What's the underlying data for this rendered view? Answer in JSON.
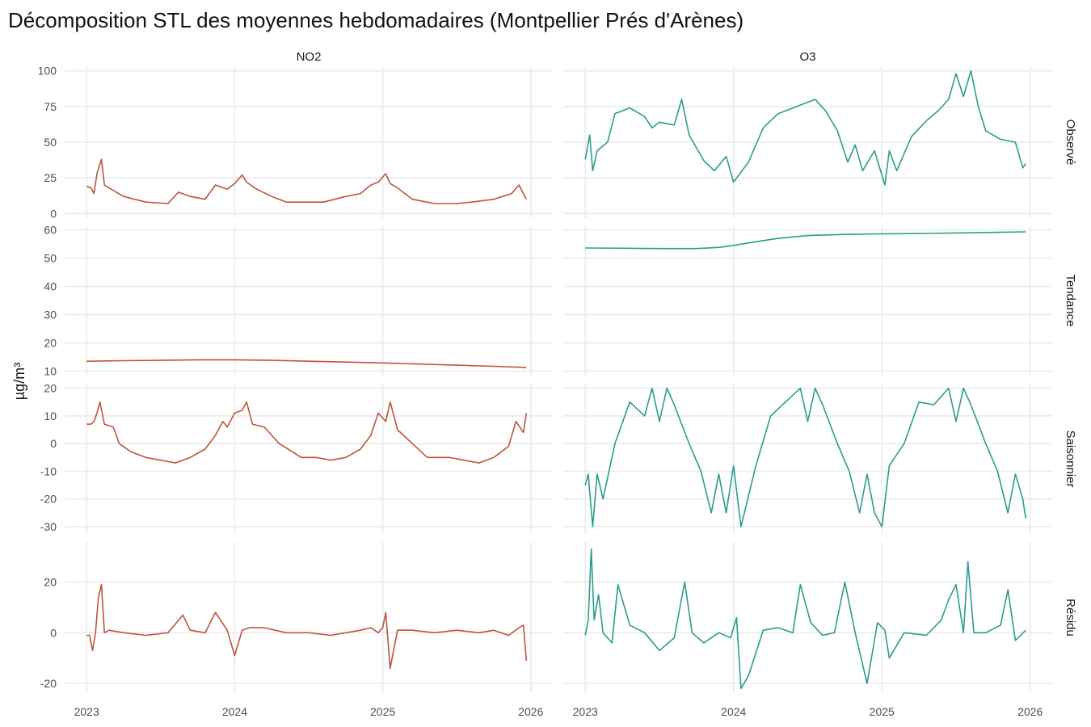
{
  "chart_data": {
    "type": "line",
    "title": "Décomposition STL des moyennes hebdomadaires (Montpellier Prés d'Arènes)",
    "ylabel": "µg/m³",
    "xlabel": "",
    "grid": true,
    "legend": "none",
    "x_range": [
      2023,
      2026
    ],
    "x_ticks": [
      "2023",
      "2024",
      "2025",
      "2026"
    ],
    "pollutants": [
      "NO2",
      "O3"
    ],
    "components": [
      "Observé",
      "Tendance",
      "Saisonnier",
      "Résidu"
    ],
    "colors": {
      "NO2": "#c0533a",
      "O3": "#2a9d8f"
    },
    "rows": [
      {
        "name": "Observé",
        "ylim": [
          0,
          100
        ],
        "ticks": [
          "0",
          "25",
          "50",
          "75",
          "100"
        ]
      },
      {
        "name": "Tendance",
        "ylim": [
          10,
          60
        ],
        "ticks": [
          "10",
          "20",
          "30",
          "40",
          "50",
          "60"
        ]
      },
      {
        "name": "Saisonnier",
        "ylim": [
          -31,
          20
        ],
        "ticks": [
          "-30",
          "-20",
          "-10",
          "0",
          "10",
          "20"
        ]
      },
      {
        "name": "Résidu",
        "ylim": [
          -22,
          34
        ],
        "ticks": [
          "-20",
          "0",
          "20"
        ]
      }
    ],
    "series": [
      {
        "pollutant": "NO2",
        "component": "Observé",
        "x": [
          2023.0,
          2023.03,
          2023.05,
          2023.07,
          2023.1,
          2023.12,
          2023.15,
          2023.25,
          2023.4,
          2023.55,
          2023.62,
          2023.7,
          2023.8,
          2023.87,
          2023.95,
          2024.0,
          2024.05,
          2024.08,
          2024.15,
          2024.25,
          2024.35,
          2024.45,
          2024.6,
          2024.75,
          2024.85,
          2024.92,
          2024.97,
          2025.02,
          2025.05,
          2025.1,
          2025.2,
          2025.35,
          2025.5,
          2025.6,
          2025.75,
          2025.87,
          2025.92,
          2025.97
        ],
        "values": [
          19,
          18,
          14,
          28,
          38,
          20,
          18,
          12,
          8,
          7,
          15,
          12,
          10,
          20,
          17,
          21,
          27,
          22,
          17,
          12,
          8,
          8,
          8,
          12,
          14,
          20,
          22,
          28,
          21,
          18,
          10,
          7,
          7,
          8,
          10,
          14,
          20,
          10
        ]
      },
      {
        "pollutant": "O3",
        "component": "Observé",
        "x": [
          2023.0,
          2023.03,
          2023.05,
          2023.08,
          2023.15,
          2023.2,
          2023.3,
          2023.4,
          2023.45,
          2023.5,
          2023.6,
          2023.65,
          2023.7,
          2023.8,
          2023.87,
          2023.95,
          2024.0,
          2024.05,
          2024.1,
          2024.2,
          2024.3,
          2024.45,
          2024.55,
          2024.62,
          2024.7,
          2024.77,
          2024.82,
          2024.87,
          2024.95,
          2025.02,
          2025.05,
          2025.1,
          2025.2,
          2025.3,
          2025.38,
          2025.45,
          2025.5,
          2025.55,
          2025.6,
          2025.65,
          2025.7,
          2025.8,
          2025.9,
          2025.95,
          2025.97
        ],
        "values": [
          38,
          55,
          30,
          44,
          50,
          70,
          74,
          68,
          60,
          64,
          62,
          80,
          55,
          37,
          30,
          40,
          22,
          29,
          36,
          60,
          70,
          76,
          80,
          72,
          58,
          36,
          48,
          30,
          44,
          20,
          44,
          30,
          54,
          65,
          72,
          80,
          98,
          82,
          100,
          75,
          58,
          52,
          50,
          32,
          35
        ]
      },
      {
        "pollutant": "NO2",
        "component": "Tendance",
        "x": [
          2023.0,
          2023.25,
          2023.5,
          2023.75,
          2024.0,
          2024.25,
          2024.5,
          2024.75,
          2025.0,
          2025.25,
          2025.5,
          2025.75,
          2025.97
        ],
        "values": [
          13.5,
          13.7,
          13.8,
          14.0,
          14.0,
          13.8,
          13.5,
          13.2,
          12.9,
          12.5,
          12.1,
          11.7,
          11.3
        ]
      },
      {
        "pollutant": "O3",
        "component": "Tendance",
        "x": [
          2023.0,
          2023.25,
          2023.5,
          2023.75,
          2023.9,
          2024.0,
          2024.15,
          2024.3,
          2024.5,
          2024.75,
          2025.0,
          2025.25,
          2025.5,
          2025.75,
          2025.97
        ],
        "values": [
          53.6,
          53.5,
          53.4,
          53.4,
          53.8,
          54.5,
          55.8,
          57.0,
          58.0,
          58.4,
          58.6,
          58.7,
          58.9,
          59.1,
          59.3
        ]
      },
      {
        "pollutant": "NO2",
        "component": "Saisonnier",
        "x": [
          2023.0,
          2023.03,
          2023.05,
          2023.07,
          2023.09,
          2023.12,
          2023.18,
          2023.22,
          2023.3,
          2023.4,
          2023.5,
          2023.6,
          2023.7,
          2023.8,
          2023.87,
          2023.92,
          2023.95,
          2024.0,
          2024.05,
          2024.08,
          2024.12,
          2024.2,
          2024.3,
          2024.45,
          2024.55,
          2024.65,
          2024.75,
          2024.85,
          2024.92,
          2024.97,
          2025.02,
          2025.05,
          2025.1,
          2025.2,
          2025.3,
          2025.45,
          2025.55,
          2025.65,
          2025.75,
          2025.85,
          2025.9,
          2025.95,
          2025.97
        ],
        "values": [
          7,
          7,
          8,
          11,
          15,
          7,
          6,
          0,
          -3,
          -5,
          -6,
          -7,
          -5,
          -2,
          3,
          8,
          6,
          11,
          12,
          15,
          7,
          6,
          0,
          -5,
          -5,
          -6,
          -5,
          -2,
          3,
          11,
          8,
          15,
          5,
          0,
          -5,
          -5,
          -6,
          -7,
          -5,
          -1,
          8,
          4,
          11
        ]
      },
      {
        "pollutant": "O3",
        "component": "Saisonnier",
        "x": [
          2023.0,
          2023.02,
          2023.05,
          2023.08,
          2023.12,
          2023.2,
          2023.3,
          2023.4,
          2023.45,
          2023.5,
          2023.55,
          2023.6,
          2023.7,
          2023.78,
          2023.85,
          2023.9,
          2023.95,
          2024.0,
          2024.05,
          2024.15,
          2024.25,
          2024.35,
          2024.45,
          2024.5,
          2024.55,
          2024.6,
          2024.7,
          2024.78,
          2024.85,
          2024.9,
          2024.95,
          2025.0,
          2025.05,
          2025.15,
          2025.25,
          2025.35,
          2025.45,
          2025.5,
          2025.55,
          2025.6,
          2025.7,
          2025.78,
          2025.85,
          2025.9,
          2025.95,
          2025.97
        ],
        "values": [
          -15,
          -11,
          -30,
          -11,
          -20,
          0,
          15,
          10,
          20,
          8,
          20,
          14,
          0,
          -10,
          -25,
          -11,
          -25,
          -8,
          -30,
          -8,
          10,
          15,
          20,
          8,
          20,
          14,
          0,
          -10,
          -25,
          -11,
          -25,
          -30,
          -8,
          0,
          15,
          14,
          20,
          8,
          20,
          14,
          0,
          -10,
          -25,
          -11,
          -20,
          -27
        ]
      },
      {
        "pollutant": "NO2",
        "component": "Résidu",
        "x": [
          2023.0,
          2023.02,
          2023.04,
          2023.06,
          2023.08,
          2023.1,
          2023.12,
          2023.15,
          2023.25,
          2023.4,
          2023.55,
          2023.65,
          2023.7,
          2023.8,
          2023.87,
          2023.95,
          2024.0,
          2024.05,
          2024.1,
          2024.2,
          2024.35,
          2024.5,
          2024.65,
          2024.75,
          2024.85,
          2024.92,
          2024.97,
          2025.0,
          2025.02,
          2025.05,
          2025.1,
          2025.2,
          2025.35,
          2025.5,
          2025.65,
          2025.75,
          2025.85,
          2025.92,
          2025.95,
          2025.97
        ],
        "values": [
          -1,
          -1,
          -7,
          0,
          14,
          19,
          0,
          1,
          0,
          -1,
          0,
          7,
          1,
          0,
          8,
          1,
          -9,
          1,
          2,
          2,
          0,
          0,
          -1,
          0,
          1,
          2,
          0,
          2,
          8,
          -14,
          1,
          1,
          0,
          1,
          0,
          1,
          -1,
          2,
          3,
          -11
        ]
      },
      {
        "pollutant": "O3",
        "component": "Résidu",
        "x": [
          2023.0,
          2023.02,
          2023.04,
          2023.06,
          2023.09,
          2023.12,
          2023.18,
          2023.22,
          2023.3,
          2023.4,
          2023.5,
          2023.6,
          2023.67,
          2023.72,
          2023.8,
          2023.9,
          2023.98,
          2024.02,
          2024.05,
          2024.1,
          2024.2,
          2024.3,
          2024.4,
          2024.45,
          2024.52,
          2024.6,
          2024.68,
          2024.75,
          2024.82,
          2024.9,
          2024.97,
          2025.02,
          2025.05,
          2025.15,
          2025.3,
          2025.4,
          2025.45,
          2025.5,
          2025.55,
          2025.58,
          2025.62,
          2025.7,
          2025.8,
          2025.85,
          2025.9,
          2025.97
        ],
        "values": [
          -1,
          5,
          33,
          5,
          15,
          0,
          -4,
          19,
          3,
          0,
          -7,
          -2,
          20,
          0,
          -4,
          0,
          -2,
          6,
          -22,
          -17,
          1,
          2,
          0,
          19,
          4,
          -1,
          0,
          20,
          0,
          -20,
          4,
          1,
          -10,
          0,
          -1,
          5,
          13,
          19,
          0,
          28,
          0,
          0,
          3,
          17,
          -3,
          1
        ]
      }
    ]
  }
}
